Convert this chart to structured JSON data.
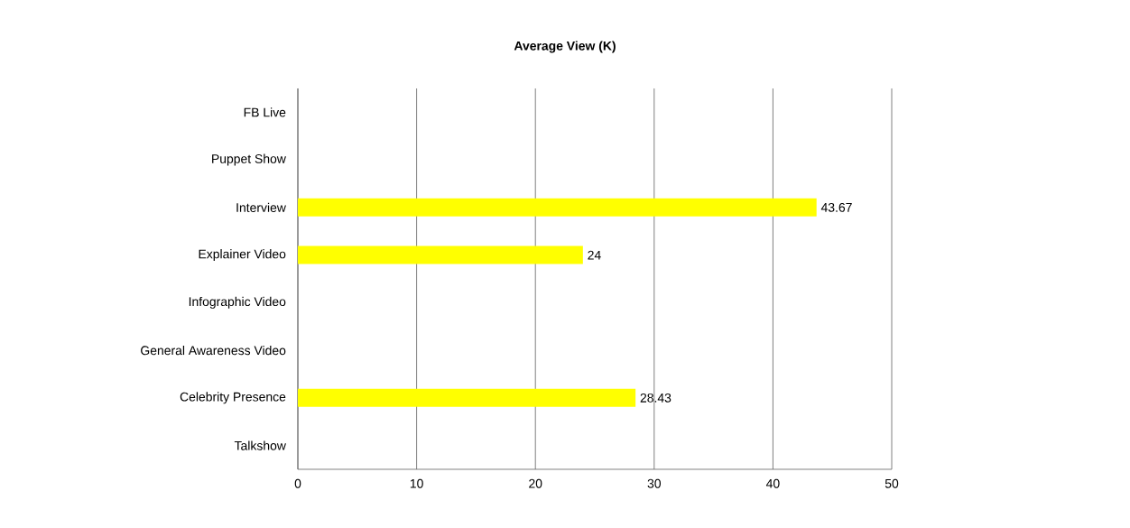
{
  "chart_data": {
    "type": "bar",
    "orientation": "horizontal",
    "title": "Average View (K)",
    "categories": [
      "FB Live",
      "Puppet Show",
      "Interview",
      "Explainer Video",
      "Infographic Video",
      "General Awareness Video",
      "Celebrity Presence",
      "Talkshow"
    ],
    "values": [
      null,
      null,
      43.67,
      24,
      null,
      null,
      28.43,
      null
    ],
    "color": "#ffff00",
    "xlim": [
      0,
      50
    ],
    "xticks": [
      0,
      10,
      20,
      30,
      40,
      50
    ],
    "grid": "x",
    "data_labels": true
  }
}
